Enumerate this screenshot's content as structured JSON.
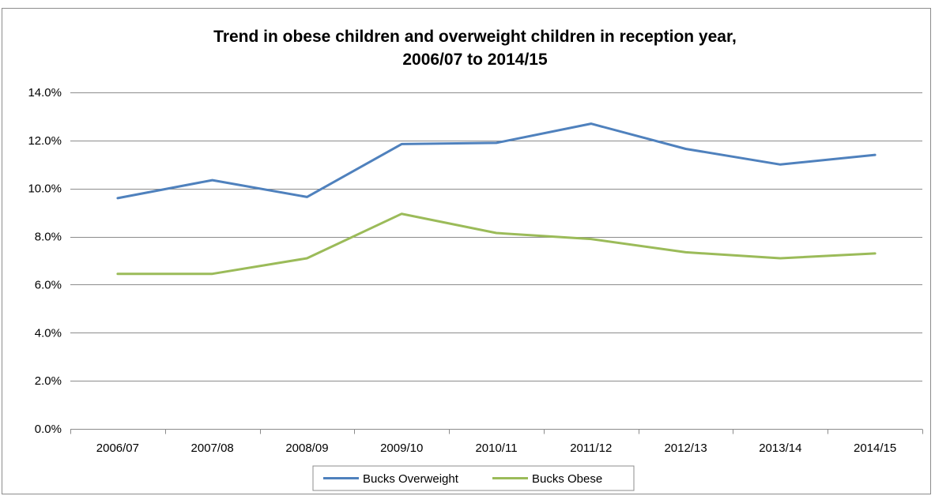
{
  "chart_data": {
    "type": "line",
    "title": "Trend in obese children and overweight children in reception year, 2006/07 to 2014/15",
    "title_lines": [
      "Trend in obese children and overweight children in reception year,",
      "2006/07 to 2014/15"
    ],
    "categories": [
      "2006/07",
      "2007/08",
      "2008/09",
      "2009/10",
      "2010/11",
      "2011/12",
      "2012/13",
      "2013/14",
      "2014/15"
    ],
    "series": [
      {
        "name": "Bucks Overweight",
        "color": "#4f81bd",
        "values": [
          9.6,
          10.35,
          9.65,
          11.85,
          11.9,
          12.7,
          11.65,
          11.0,
          11.4
        ]
      },
      {
        "name": "Bucks Obese",
        "color": "#9bbb59",
        "values": [
          6.45,
          6.45,
          7.1,
          8.95,
          8.15,
          7.9,
          7.35,
          7.1,
          7.3
        ]
      }
    ],
    "y_ticks": [
      "0.0%",
      "2.0%",
      "4.0%",
      "6.0%",
      "8.0%",
      "10.0%",
      "12.0%",
      "14.0%"
    ],
    "ylim": [
      0,
      14
    ],
    "y_step": 2,
    "grid": true,
    "legend_position": "bottom",
    "xlabel": "",
    "ylabel": ""
  }
}
